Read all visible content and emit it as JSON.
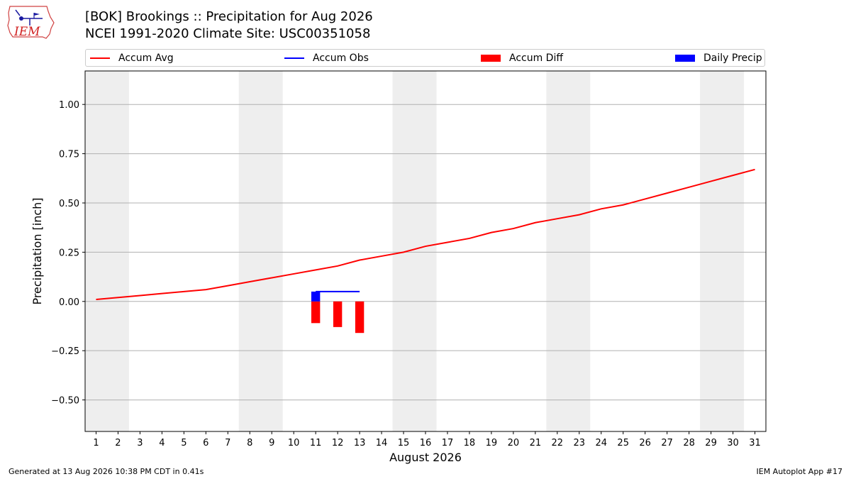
{
  "header": {
    "logo_text": "IEM",
    "title_line1": "[BOK] Brookings :: Precipitation for Aug 2026",
    "title_line2": "NCEI 1991-2020 Climate Site: USC00351058"
  },
  "legend": {
    "placement": "top",
    "items": [
      {
        "label": "Accum Avg",
        "kind": "line",
        "color": "#ff0000"
      },
      {
        "label": "Accum Obs",
        "kind": "line",
        "color": "#0000ff"
      },
      {
        "label": "Accum Diff",
        "kind": "patch",
        "color": "#ff0000"
      },
      {
        "label": "Daily Precip",
        "kind": "patch",
        "color": "#0000ff"
      }
    ]
  },
  "colors": {
    "avg": "#ff0000",
    "obs": "#0000ff",
    "diff": "#ff0000",
    "daily": "#0000ff",
    "weekend": "#eeeeee",
    "grid": "#b0b0b0"
  },
  "chart_data": {
    "type": "line",
    "xlabel": "August 2026",
    "ylabel": "Precipitation [inch]",
    "xlim": [
      0.5,
      31.5
    ],
    "ylim": [
      -0.66,
      1.17
    ],
    "grid": "y",
    "x_ticks": [
      1,
      2,
      3,
      4,
      5,
      6,
      7,
      8,
      9,
      10,
      11,
      12,
      13,
      14,
      15,
      16,
      17,
      18,
      19,
      20,
      21,
      22,
      23,
      24,
      25,
      26,
      27,
      28,
      29,
      30,
      31
    ],
    "y_ticks": [
      -0.5,
      -0.25,
      0.0,
      0.25,
      0.5,
      0.75,
      1.0
    ],
    "y_tick_labels": [
      "−0.50",
      "−0.25",
      "0.00",
      "0.25",
      "0.50",
      "0.75",
      "1.00"
    ],
    "weekend_spans": [
      [
        1,
        2
      ],
      [
        8,
        9
      ],
      [
        15,
        16
      ],
      [
        22,
        23
      ],
      [
        29,
        30
      ]
    ],
    "series": [
      {
        "name": "Accum Avg",
        "kind": "line",
        "x": [
          1,
          2,
          3,
          4,
          5,
          6,
          7,
          8,
          9,
          10,
          11,
          12,
          13,
          14,
          15,
          16,
          17,
          18,
          19,
          20,
          21,
          22,
          23,
          24,
          25,
          26,
          27,
          28,
          29,
          30,
          31
        ],
        "values": [
          0.01,
          0.02,
          0.03,
          0.04,
          0.05,
          0.06,
          0.08,
          0.1,
          0.12,
          0.14,
          0.16,
          0.18,
          0.21,
          0.23,
          0.25,
          0.28,
          0.3,
          0.32,
          0.35,
          0.37,
          0.4,
          0.42,
          0.44,
          0.47,
          0.49,
          0.52,
          0.55,
          0.58,
          0.61,
          0.64,
          0.67
        ]
      },
      {
        "name": "Accum Obs",
        "kind": "line",
        "x": [
          11,
          12,
          13
        ],
        "values": [
          0.05,
          0.05,
          0.05
        ]
      },
      {
        "name": "Accum Diff",
        "kind": "bar",
        "x": [
          11,
          12,
          13
        ],
        "values": [
          -0.11,
          -0.13,
          -0.16
        ]
      },
      {
        "name": "Daily Precip",
        "kind": "bar",
        "x": [
          11
        ],
        "values": [
          0.05
        ]
      }
    ]
  },
  "footer": {
    "left": "Generated at 13 Aug 2026 10:38 PM CDT in 0.41s",
    "right": "IEM Autoplot App #17"
  }
}
